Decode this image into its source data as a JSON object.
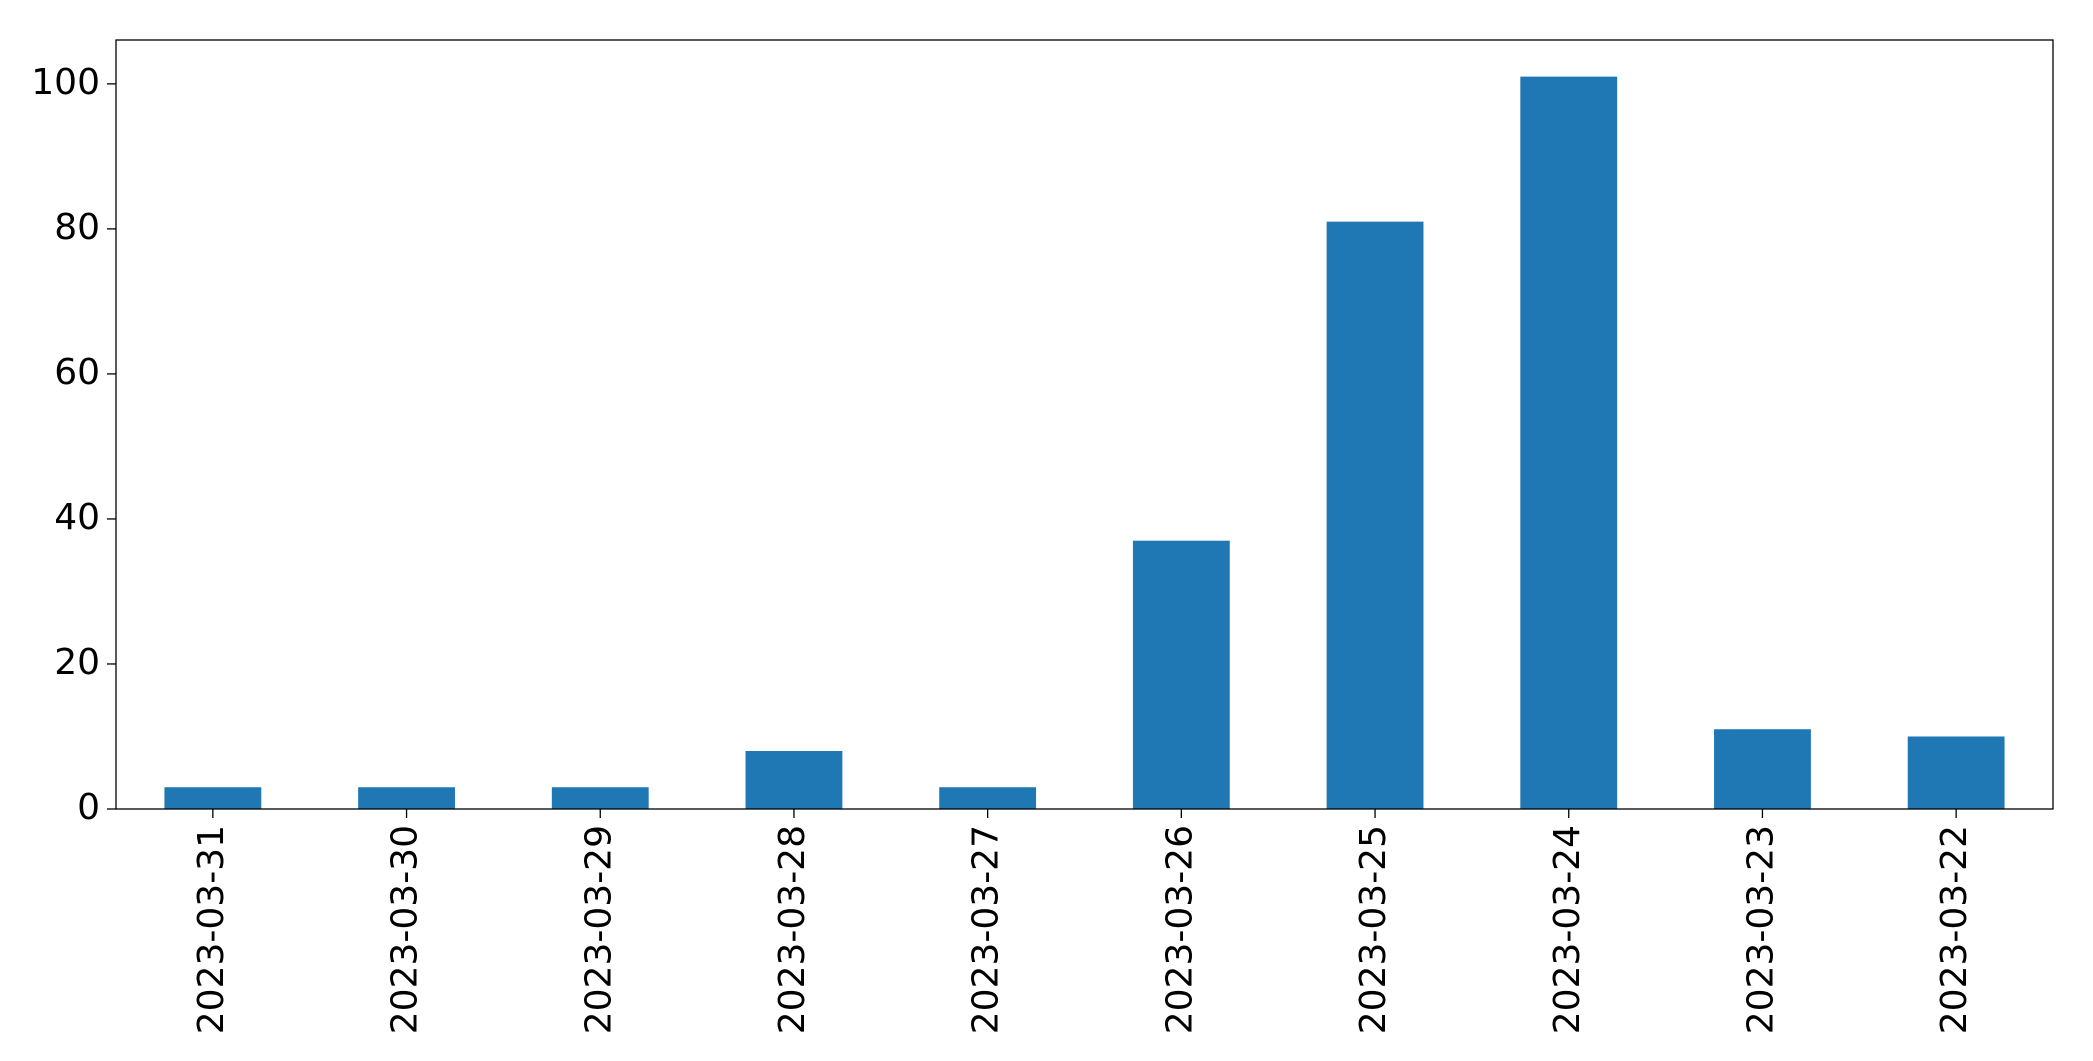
{
  "chart_data": {
    "type": "bar",
    "categories": [
      "2023-03-31",
      "2023-03-30",
      "2023-03-29",
      "2023-03-28",
      "2023-03-27",
      "2023-03-26",
      "2023-03-25",
      "2023-03-24",
      "2023-03-23",
      "2023-03-22"
    ],
    "values": [
      3,
      3,
      3,
      8,
      3,
      37,
      81,
      101,
      11,
      10
    ],
    "color": "#1f77b4",
    "ylim": [
      0,
      106.05
    ],
    "yticks": [
      0,
      20,
      40,
      60,
      80,
      100
    ],
    "grid": false
  }
}
